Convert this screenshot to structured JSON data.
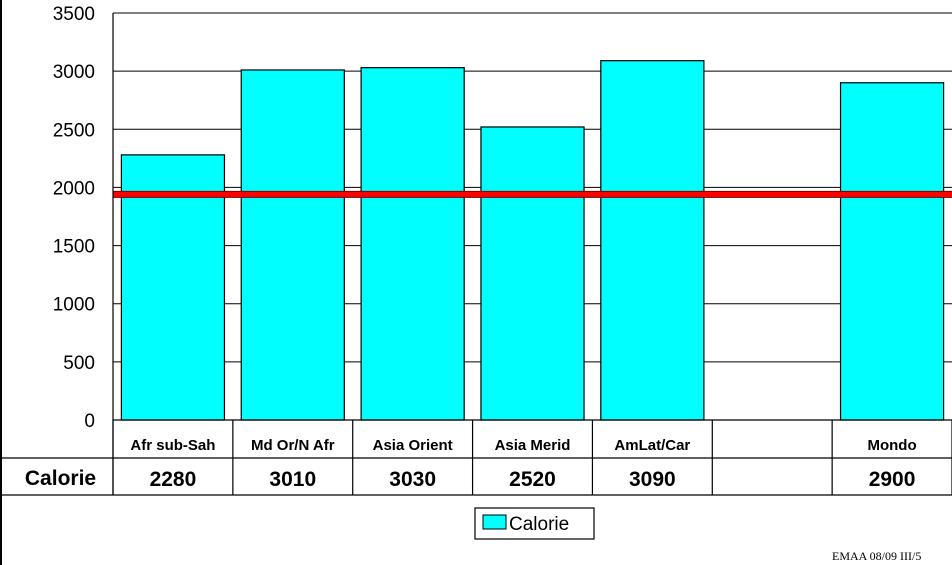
{
  "chart_data": {
    "type": "bar",
    "categories": [
      "Afr sub-Sah",
      "Md Or/N Afr",
      "Asia Orient",
      "Asia Merid",
      "AmLat/Car",
      "",
      "Mondo"
    ],
    "series": [
      {
        "name": "Calorie",
        "values": [
          2280,
          3010,
          3030,
          2520,
          3090,
          null,
          2900
        ]
      }
    ],
    "data_table": {
      "row_header": "Calorie",
      "cells": [
        "2280",
        "3010",
        "3030",
        "2520",
        "3090",
        "",
        "2900"
      ]
    },
    "y_ticks": [
      0,
      500,
      1000,
      1500,
      2000,
      2500,
      3000,
      3500
    ],
    "ylim": [
      0,
      3500
    ],
    "reference_line": {
      "value": 1940,
      "color": "#ff0000"
    },
    "bar_color": "#00ffff",
    "grid": true,
    "legend": {
      "position": "bottom",
      "entries": [
        "Calorie"
      ]
    },
    "title": "",
    "xlabel": "",
    "ylabel": ""
  },
  "footer": {
    "text": "EMAA 08/09   III/5"
  }
}
